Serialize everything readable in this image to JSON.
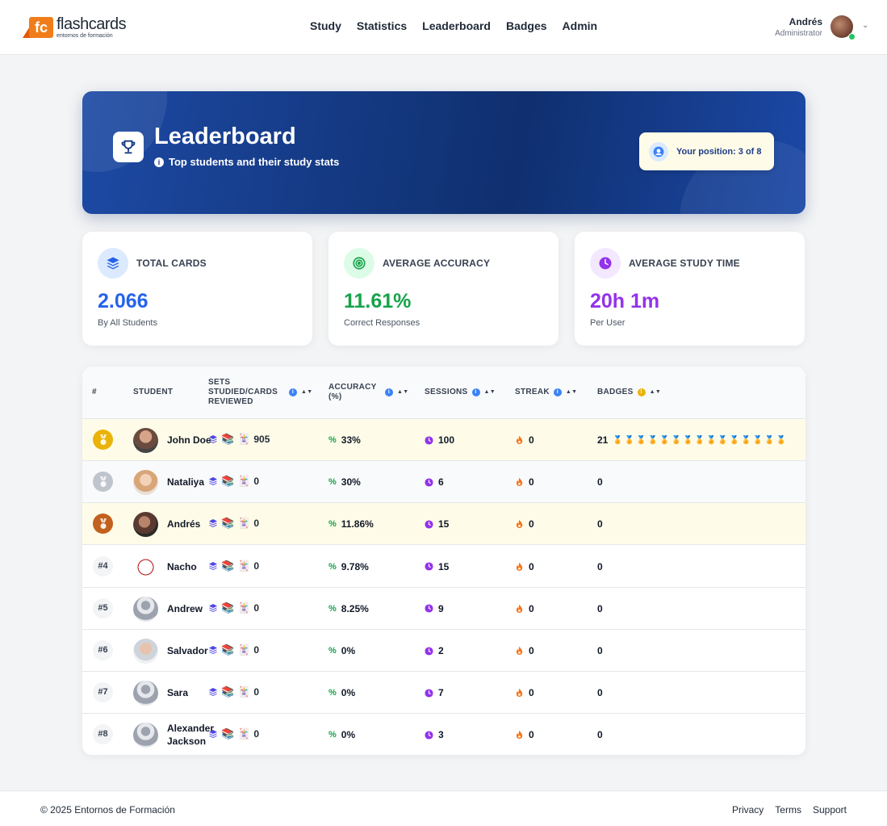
{
  "nav": {
    "logo_text": "flashcards",
    "logo_mark": "fc",
    "logo_subtext": "entornos de formación",
    "menu": [
      "Study",
      "Statistics",
      "Leaderboard",
      "Badges",
      "Admin"
    ],
    "user_name": "Andrés",
    "user_role": "Administrator"
  },
  "hero": {
    "title": "Leaderboard",
    "subtitle": "Top students and their study stats",
    "position_label": "Your position: 3 of 8"
  },
  "stats": [
    {
      "label": "TOTAL CARDS",
      "value": "2.066",
      "note": "By All Students",
      "color": "#2563eb",
      "icon": "layers-icon"
    },
    {
      "label": "AVERAGE ACCURACY",
      "value": "11.61%",
      "note": "Correct Responses",
      "color": "#16a34a",
      "icon": "target-icon"
    },
    {
      "label": "AVERAGE STUDY TIME",
      "value": "20h 1m",
      "note": "Per User",
      "color": "#9333ea",
      "icon": "clock-icon"
    }
  ],
  "table": {
    "headers": {
      "rank": "#",
      "student": "STUDENT",
      "sets": "SETS STUDIED/CARDS REVIEWED",
      "accuracy": "ACCURACY (%)",
      "sessions": "SESSIONS",
      "streak": "STREAK",
      "badges": "BADGES"
    },
    "rows": [
      {
        "rank": "#1",
        "medal": "gold",
        "name": "John Doe",
        "cards": "905",
        "accuracy": "33%",
        "sessions": "100",
        "streak": "0",
        "badges": "21",
        "badge_icons": "🏅🏅🏅🏅🏅🏅🏅🏅🏅🏅🏅🏅🏅🏅🏅"
      },
      {
        "rank": "#2",
        "medal": "silver",
        "name": "Nataliya",
        "cards": "0",
        "accuracy": "30%",
        "sessions": "6",
        "streak": "0",
        "badges": "0"
      },
      {
        "rank": "#3",
        "medal": "bronze",
        "name": "Andrés",
        "cards": "0",
        "accuracy": "11.86%",
        "sessions": "15",
        "streak": "0",
        "badges": "0"
      },
      {
        "rank": "#4",
        "name": "Nacho",
        "cards": "0",
        "accuracy": "9.78%",
        "sessions": "15",
        "streak": "0",
        "badges": "0"
      },
      {
        "rank": "#5",
        "name": "Andrew",
        "cards": "0",
        "accuracy": "8.25%",
        "sessions": "9",
        "streak": "0",
        "badges": "0"
      },
      {
        "rank": "#6",
        "name": "Salvador",
        "cards": "0",
        "accuracy": "0%",
        "sessions": "2",
        "streak": "0",
        "badges": "0"
      },
      {
        "rank": "#7",
        "name": "Sara",
        "cards": "0",
        "accuracy": "0%",
        "sessions": "7",
        "streak": "0",
        "badges": "0"
      },
      {
        "rank": "#8",
        "name": "Alexander Jackson",
        "cards": "0",
        "accuracy": "0%",
        "sessions": "3",
        "streak": "0",
        "badges": "0"
      }
    ]
  },
  "footer": {
    "copyright": "© 2025 Entornos de Formación",
    "links": [
      "Privacy",
      "Terms",
      "Support"
    ]
  }
}
